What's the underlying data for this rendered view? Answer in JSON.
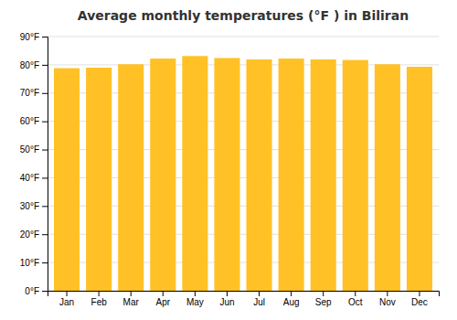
{
  "chart_data": {
    "type": "bar",
    "title": "Average monthly temperatures (°F ) in Biliran",
    "categories": [
      "Jan",
      "Feb",
      "Mar",
      "Apr",
      "May",
      "Jun",
      "Jul",
      "Aug",
      "Sep",
      "Oct",
      "Nov",
      "Dec"
    ],
    "values": [
      78.8,
      79.0,
      80.2,
      82.2,
      83.1,
      82.4,
      81.9,
      82.2,
      81.9,
      81.7,
      80.2,
      79.3
    ],
    "color": "#FFC125",
    "ylim": [
      0,
      90
    ],
    "yticks": [
      {
        "value": 0,
        "label": "0°F"
      },
      {
        "value": 10,
        "label": "10°F"
      },
      {
        "value": 20,
        "label": "20°F"
      },
      {
        "value": 30,
        "label": "30°F"
      },
      {
        "value": 40,
        "label": "40°F"
      },
      {
        "value": 50,
        "label": "50°F"
      },
      {
        "value": 60,
        "label": "60°F"
      },
      {
        "value": 70,
        "label": "70°F"
      },
      {
        "value": 80,
        "label": "80°F"
      },
      {
        "value": 90,
        "label": "90°F"
      }
    ],
    "grid": true
  }
}
